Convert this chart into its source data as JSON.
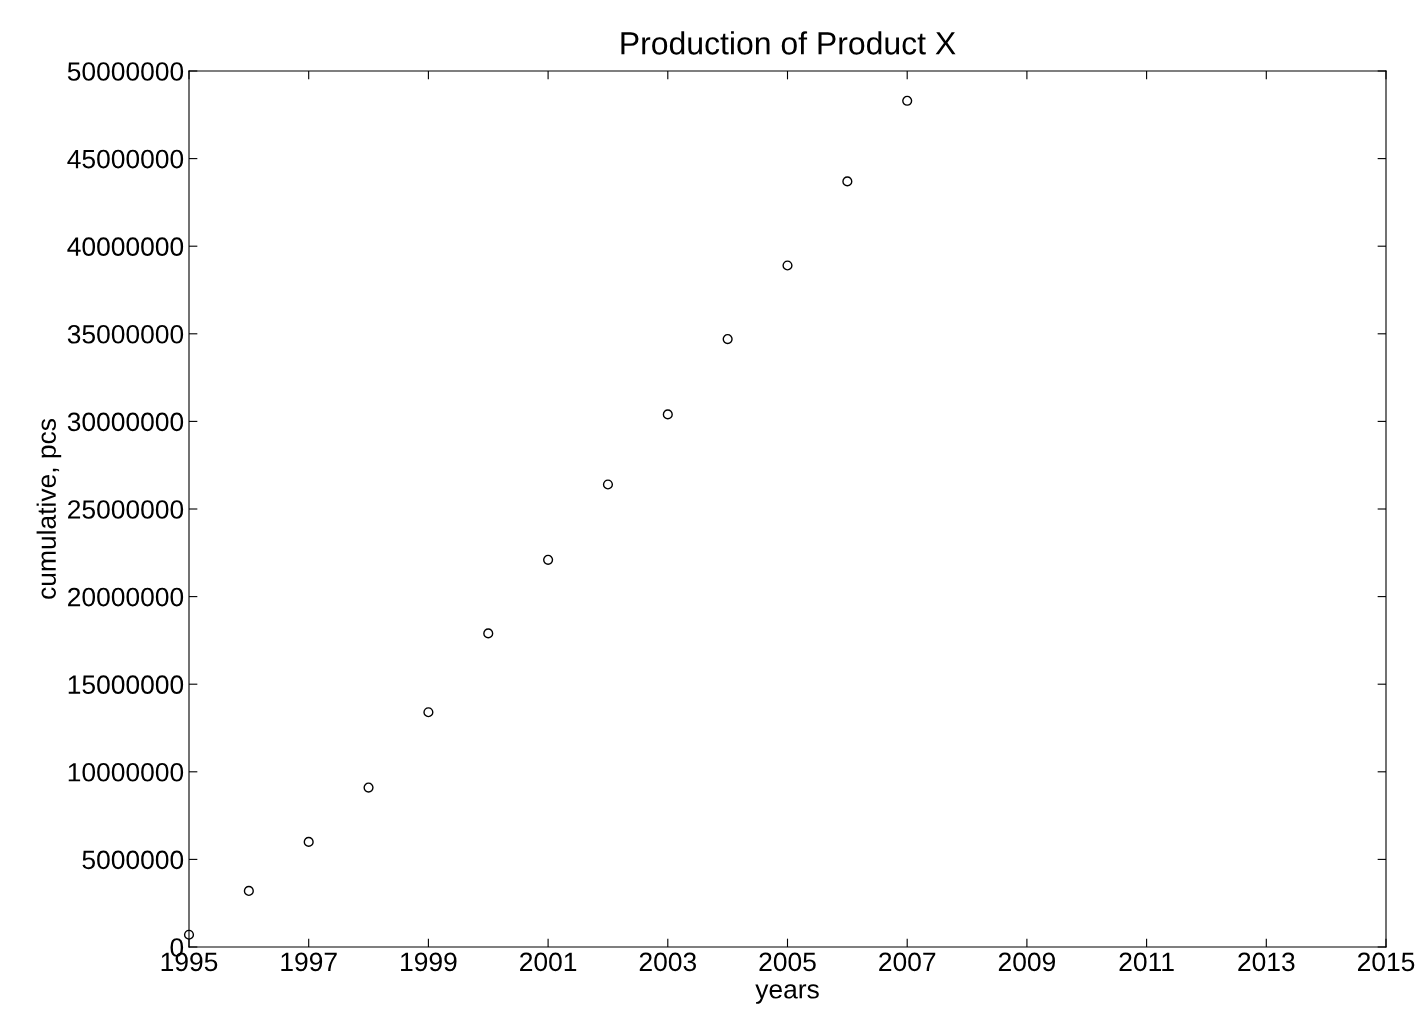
{
  "chart_data": {
    "type": "scatter",
    "title": "Production of Product X",
    "xlabel": "years",
    "ylabel": "cumulative, pcs",
    "x": [
      1995,
      1996,
      1997,
      1998,
      1999,
      2000,
      2001,
      2002,
      2003,
      2004,
      2005,
      2006,
      2007
    ],
    "series": [
      {
        "color": "#000000",
        "values": [
          700000,
          3200000,
          6000000,
          9100000,
          13400000,
          17900000,
          22100000,
          26400000,
          30400000,
          34700000,
          38900000,
          43700000,
          48300000
        ]
      }
    ],
    "marker": "circle",
    "grid": false,
    "legend": false,
    "xlim": [
      1995,
      2015
    ],
    "xticks": [
      1995,
      1997,
      1999,
      2001,
      2003,
      2005,
      2007,
      2009,
      2011,
      2013,
      2015
    ],
    "ylim": [
      0,
      50000000
    ],
    "yticks": [
      0,
      5000000,
      10000000,
      15000000,
      20000000,
      25000000,
      30000000,
      35000000,
      40000000,
      45000000,
      50000000
    ]
  }
}
